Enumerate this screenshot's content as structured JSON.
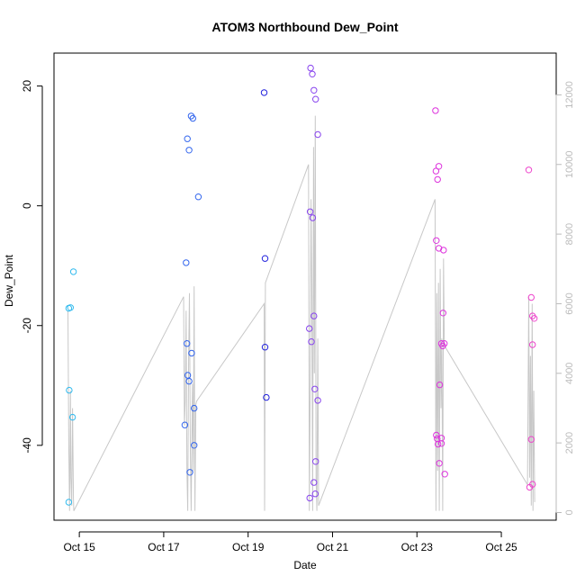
{
  "chart_data": {
    "type": "scatter",
    "title": "ATOM3 Northbound Dew_Point",
    "xlabel": "Date",
    "ylabel": "Dew_Point",
    "x_unit": "day of October",
    "xlim": [
      14.4,
      26.3
    ],
    "ylim": [
      -52.5,
      25.5
    ],
    "y_ticks": [
      -40,
      -20,
      0,
      20
    ],
    "x_ticks": [
      {
        "value": 15,
        "label": "Oct 15"
      },
      {
        "value": 17,
        "label": "Oct 17"
      },
      {
        "value": 19,
        "label": "Oct 19"
      },
      {
        "value": 21,
        "label": "Oct 21"
      },
      {
        "value": 23,
        "label": "Oct 23"
      },
      {
        "value": 25,
        "label": "Oct 25"
      }
    ],
    "right_axis": {
      "ylim": [
        -220,
        13200
      ],
      "ticks": [
        0,
        2000,
        4000,
        6000,
        8000,
        10000,
        12000
      ],
      "color": "#bbbbbb"
    },
    "secondary_series": {
      "name": "",
      "color": "#c8c8c8",
      "points": [
        [
          14.73,
          5800
        ],
        [
          14.75,
          2000
        ],
        [
          14.77,
          50
        ],
        [
          14.79,
          3500
        ],
        [
          14.8,
          1000
        ],
        [
          14.82,
          200
        ],
        [
          14.84,
          3000
        ],
        [
          14.86,
          400
        ],
        [
          14.87,
          50
        ],
        [
          17.47,
          6200
        ],
        [
          17.49,
          2500
        ],
        [
          17.51,
          3200
        ],
        [
          17.53,
          5800
        ],
        [
          17.55,
          1200
        ],
        [
          17.57,
          50
        ],
        [
          17.59,
          4500
        ],
        [
          17.61,
          6300
        ],
        [
          17.63,
          1800
        ],
        [
          17.65,
          50
        ],
        [
          17.68,
          3700
        ],
        [
          17.7,
          1200
        ],
        [
          17.72,
          6500
        ],
        [
          17.74,
          50
        ],
        [
          17.76,
          3100
        ],
        [
          17.78,
          3200
        ],
        [
          19.38,
          6000
        ],
        [
          19.39,
          50
        ],
        [
          19.41,
          6600
        ],
        [
          20.43,
          10000
        ],
        [
          20.45,
          50
        ],
        [
          20.47,
          3500
        ],
        [
          20.49,
          9000
        ],
        [
          20.51,
          6300
        ],
        [
          20.53,
          50
        ],
        [
          20.55,
          10500
        ],
        [
          20.57,
          4000
        ],
        [
          20.59,
          11400
        ],
        [
          20.61,
          1000
        ],
        [
          20.63,
          50
        ],
        [
          20.65,
          5000
        ],
        [
          20.67,
          200
        ],
        [
          23.43,
          9000
        ],
        [
          23.45,
          50
        ],
        [
          23.47,
          6300
        ],
        [
          23.49,
          1200
        ],
        [
          23.51,
          6600
        ],
        [
          23.53,
          50
        ],
        [
          23.55,
          7000
        ],
        [
          23.57,
          3000
        ],
        [
          23.59,
          5000
        ],
        [
          23.61,
          50
        ],
        [
          23.63,
          7300
        ],
        [
          23.65,
          4800
        ],
        [
          25.62,
          800
        ],
        [
          25.65,
          6200
        ],
        [
          25.67,
          1000
        ],
        [
          25.69,
          4500
        ],
        [
          25.71,
          200
        ],
        [
          25.73,
          6000
        ],
        [
          25.75,
          50
        ],
        [
          25.77,
          3500
        ],
        [
          25.79,
          300
        ]
      ]
    },
    "series": [
      {
        "name": "",
        "points": [
          [
            14.75,
            -17.1
          ],
          [
            14.79,
            -17.0
          ],
          [
            14.86,
            -11.0
          ],
          [
            14.76,
            -30.8
          ],
          [
            14.84,
            -35.3
          ],
          [
            14.75,
            -49.5
          ]
        ],
        "colors": [
          "#33bbee",
          "#33bbee",
          "#33bbee",
          "#33bbee",
          "#33bbee",
          "#33bbee"
        ]
      },
      {
        "name": "",
        "points": [
          [
            17.65,
            15.0
          ],
          [
            17.69,
            14.6
          ],
          [
            17.56,
            11.2
          ],
          [
            17.6,
            9.3
          ],
          [
            17.82,
            1.5
          ],
          [
            17.53,
            -9.5
          ],
          [
            17.55,
            -23.0
          ],
          [
            17.57,
            -28.3
          ],
          [
            17.6,
            -29.3
          ],
          [
            17.66,
            -24.6
          ],
          [
            17.72,
            -33.8
          ],
          [
            17.5,
            -36.6
          ],
          [
            17.72,
            -40.0
          ],
          [
            17.62,
            -44.5
          ]
        ],
        "colors": [
          "#3366ee",
          "#3366ee",
          "#3366ee",
          "#3366ee",
          "#3366ee",
          "#3366ee",
          "#3366ee",
          "#3366ee",
          "#3366ee",
          "#3366ee",
          "#3366ee",
          "#3366ee",
          "#3366ee",
          "#3366ee"
        ]
      },
      {
        "name": "",
        "points": [
          [
            19.38,
            18.9
          ],
          [
            19.4,
            -8.8
          ],
          [
            19.4,
            -23.6
          ],
          [
            19.43,
            -32.0
          ]
        ],
        "colors": [
          "#2222dd",
          "#2222dd",
          "#2222dd",
          "#2222dd"
        ]
      },
      {
        "name": "",
        "points": [
          [
            20.48,
            23.0
          ],
          [
            20.52,
            22.0
          ],
          [
            20.56,
            19.3
          ],
          [
            20.6,
            17.8
          ],
          [
            20.65,
            11.9
          ],
          [
            20.47,
            -1.0
          ],
          [
            20.53,
            -2.0
          ],
          [
            20.45,
            -20.5
          ],
          [
            20.56,
            -18.4
          ],
          [
            20.5,
            -22.7
          ],
          [
            20.58,
            -30.6
          ],
          [
            20.65,
            -32.5
          ],
          [
            20.6,
            -42.7
          ],
          [
            20.56,
            -46.2
          ],
          [
            20.59,
            -48.1
          ],
          [
            20.46,
            -48.8
          ]
        ],
        "colors": [
          "#8844ee",
          "#8844ee",
          "#8844ee",
          "#8844ee",
          "#8844ee",
          "#8844ee",
          "#8844ee",
          "#8844ee",
          "#8844ee",
          "#8844ee",
          "#8844ee",
          "#8844ee",
          "#8844ee",
          "#8844ee",
          "#8844ee",
          "#8844ee"
        ]
      },
      {
        "name": "",
        "points": [
          [
            23.44,
            15.9
          ],
          [
            23.45,
            5.8
          ],
          [
            23.52,
            6.6
          ],
          [
            23.49,
            4.4
          ],
          [
            23.46,
            -5.8
          ],
          [
            23.52,
            -7.1
          ],
          [
            23.63,
            -7.4
          ],
          [
            23.62,
            -17.9
          ],
          [
            23.58,
            -23.0
          ],
          [
            23.65,
            -23.0
          ],
          [
            23.61,
            -23.4
          ],
          [
            23.54,
            -29.9
          ],
          [
            23.48,
            -38.9
          ],
          [
            23.46,
            -38.3
          ],
          [
            23.5,
            -39.8
          ],
          [
            23.58,
            -39.7
          ],
          [
            23.58,
            -38.8
          ],
          [
            23.53,
            -43.0
          ],
          [
            23.66,
            -44.8
          ]
        ],
        "colors": [
          "#dd33dd",
          "#dd33dd",
          "#dd33dd",
          "#dd33dd",
          "#dd33dd",
          "#dd33dd",
          "#dd33dd",
          "#dd33dd",
          "#dd33dd",
          "#dd33dd",
          "#dd33dd",
          "#dd33dd",
          "#dd33dd",
          "#dd33dd",
          "#dd33dd",
          "#dd33dd",
          "#dd33dd",
          "#dd33dd",
          "#dd33dd"
        ]
      },
      {
        "name": "",
        "points": [
          [
            25.65,
            6.0
          ],
          [
            25.71,
            -15.3
          ],
          [
            25.74,
            -18.4
          ],
          [
            25.78,
            -18.8
          ],
          [
            25.74,
            -23.2
          ],
          [
            25.71,
            -39.0
          ],
          [
            25.67,
            -47.0
          ],
          [
            25.74,
            -46.5
          ]
        ],
        "colors": [
          "#ee44cc",
          "#ee44cc",
          "#ee44cc",
          "#ee44cc",
          "#ee44cc",
          "#ee44cc",
          "#ee44cc",
          "#ee44cc"
        ]
      }
    ],
    "grid": false,
    "legend": "none"
  }
}
